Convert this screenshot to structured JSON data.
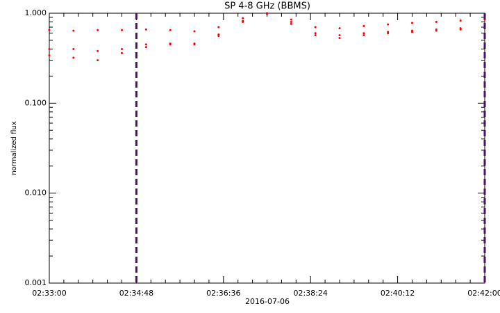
{
  "chart_data": {
    "type": "scatter",
    "title": "SP 4-8 GHz (BBMS)",
    "ylabel": "normalized flux",
    "xlabel": "2016-07-06",
    "x": [
      "02:33:00",
      "02:33:30",
      "02:34:00",
      "02:34:30",
      "02:35:00",
      "02:35:30",
      "02:36:00",
      "02:36:30",
      "02:37:00",
      "02:37:30",
      "02:38:00",
      "02:38:30",
      "02:39:00",
      "02:39:30",
      "02:40:00",
      "02:40:30",
      "02:41:00",
      "02:41:30",
      "02:42:00"
    ],
    "series": [
      {
        "color": "#ff0000",
        "values": [
          0.65,
          0.64,
          0.65,
          0.65,
          0.66,
          0.65,
          0.63,
          0.7,
          0.88,
          1.0,
          0.85,
          0.7,
          0.68,
          0.72,
          0.75,
          0.78,
          0.8,
          0.83,
          0.85
        ]
      },
      {
        "color": "#ff0000",
        "values": [
          0.4,
          0.4,
          0.38,
          0.4,
          0.45,
          0.46,
          0.46,
          0.58,
          0.82,
          1.0,
          0.8,
          0.6,
          0.57,
          0.6,
          0.62,
          0.64,
          0.66,
          0.68,
          0.7
        ]
      },
      {
        "color": "#ff0000",
        "values": [
          0.34,
          0.32,
          0.3,
          0.36,
          0.42,
          0.45,
          0.45,
          0.56,
          0.8,
          0.98,
          0.76,
          0.57,
          0.53,
          0.57,
          0.6,
          0.62,
          0.64,
          0.66,
          0.68
        ]
      }
    ],
    "vlines": [
      "02:34:48",
      "02:42:00"
    ],
    "vline_color": "#4b0f6e",
    "xlim": [
      "02:33:00",
      "02:42:00"
    ],
    "xticks": [
      "02:33:00",
      "02:34:48",
      "02:36:36",
      "02:38:24",
      "02:40:12",
      "02:42:00"
    ],
    "ylim": [
      0.001,
      1
    ],
    "log_y": true,
    "yticks": [
      {
        "value": 0.001,
        "label": "0.001"
      },
      {
        "value": 0.01,
        "label": "0.010"
      },
      {
        "value": 0.1,
        "label": "0.100"
      },
      {
        "value": 1,
        "label": "1.000"
      }
    ]
  }
}
